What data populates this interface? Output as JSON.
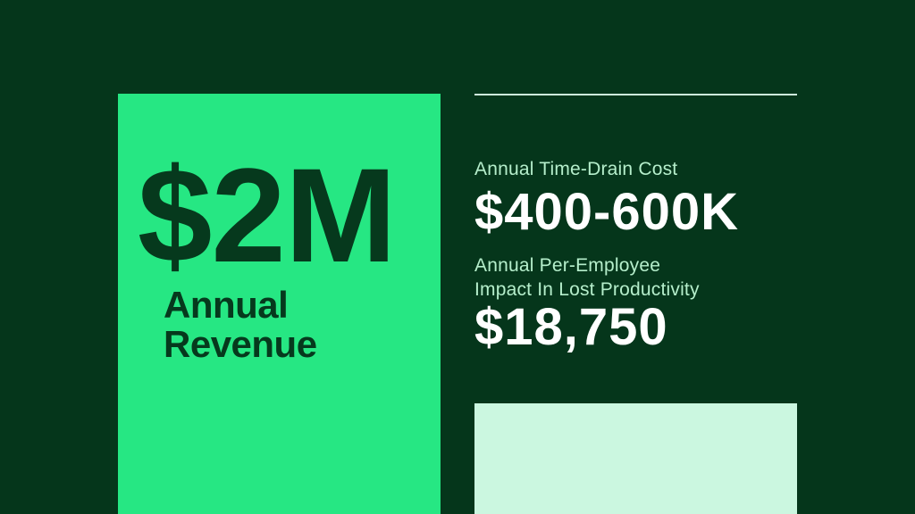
{
  "slide": {
    "card": {
      "value": "$2M",
      "label_lines": [
        "Annual",
        "Revenue"
      ]
    },
    "stats": [
      {
        "label_lines": [
          "Annual Time-Drain Cost"
        ],
        "value": "$400-600K"
      },
      {
        "label_lines": [
          "Annual Per-Employee",
          "Impact In Lost Productivity"
        ],
        "value": "$18,750"
      }
    ]
  },
  "colors": {
    "bg": "#05361b",
    "card": "#26e783",
    "dark": "#06391d",
    "label": "#b5eecb",
    "white": "#ffffff",
    "mint": "#cbf7e0",
    "divider": "#cfeedd"
  }
}
